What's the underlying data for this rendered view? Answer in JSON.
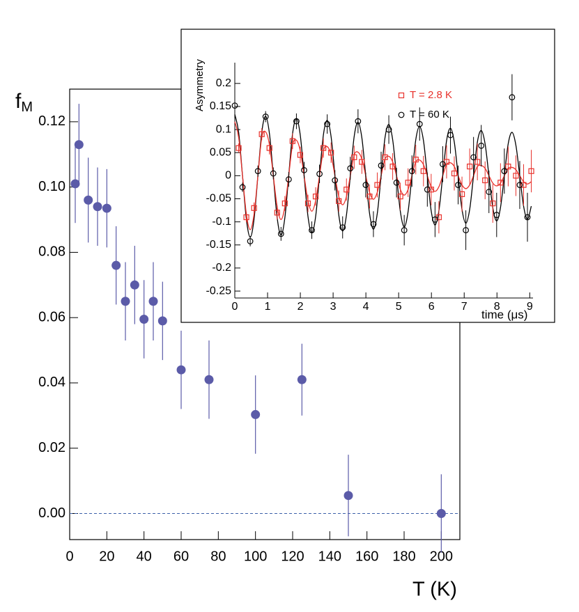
{
  "chart_data": [
    {
      "type": "scatter",
      "xlabel": "T (K)",
      "ylabel": "f",
      "ylabel_subscript": "M",
      "xlim": [
        0,
        210
      ],
      "ylim": [
        -0.008,
        0.13
      ],
      "xticks": [
        0,
        20,
        40,
        60,
        80,
        100,
        120,
        140,
        160,
        180,
        200
      ],
      "yticks": [
        {
          "value": 0,
          "label": "0.00"
        },
        {
          "value": 0.02,
          "label": "0.02"
        },
        {
          "value": 0.04,
          "label": "0.04"
        },
        {
          "value": 0.06,
          "label": "0.06"
        },
        {
          "value": 0.08,
          "label": "0.08"
        },
        {
          "value": 0.1,
          "label": "0.10"
        },
        {
          "value": 0.12,
          "label": "0.12"
        }
      ],
      "reference_line": 0,
      "reference_line_color": "#3a5fa8",
      "series": [
        {
          "color": "#5b5ba8",
          "marker": "circle",
          "x": [
            3,
            5,
            10,
            15,
            20,
            25,
            30,
            35,
            40,
            45,
            50,
            60,
            75,
            100,
            125,
            150,
            200
          ],
          "values": [
            0.101,
            0.113,
            0.096,
            0.094,
            0.0935,
            0.076,
            0.065,
            0.07,
            0.0595,
            0.065,
            0.059,
            0.044,
            0.041,
            0.0303,
            0.041,
            0.0055,
            0
          ],
          "errors": [
            0.012,
            0.0125,
            0.013,
            0.012,
            0.012,
            0.012,
            0.012,
            0.012,
            0.012,
            0.012,
            0.012,
            0.012,
            0.012,
            0.012,
            0.011,
            0.0125,
            0.012
          ]
        }
      ]
    },
    {
      "type": "scatter",
      "xlabel": "time (μs)",
      "ylabel": "Asymmetry",
      "xlim": [
        0,
        9.1
      ],
      "ylim": [
        -0.265,
        0.245
      ],
      "xticks": [
        0,
        1,
        2,
        3,
        4,
        5,
        6,
        7,
        8,
        9
      ],
      "yticks": [
        -0.25,
        -0.2,
        -0.15,
        -0.1,
        -0.05,
        0,
        0.05,
        0.1,
        0.15,
        0.2
      ],
      "series": [
        {
          "name": "T = 2.8 K",
          "color": "#e8302a",
          "marker": "square-open",
          "x": [
            0.1175,
            0.3525,
            0.5875,
            0.8225,
            1.0575,
            1.2925,
            1.5275,
            1.7625,
            1.9975,
            2.2325,
            2.4675,
            2.7025,
            2.9375,
            3.1725,
            3.4075,
            3.6425,
            3.8775,
            4.1125,
            4.3475,
            4.5825,
            4.8175,
            5.0525,
            5.2875,
            5.5225,
            5.7575,
            5.9925,
            6.2275,
            6.4625,
            6.6975,
            6.9325,
            7.1675,
            7.4025,
            7.6375,
            7.8725,
            8.1075,
            8.3425,
            8.5775,
            8.8125,
            9.0475
          ],
          "values": [
            0.06,
            -0.09,
            -0.07,
            0.09,
            0.06,
            -0.08,
            -0.06,
            0.075,
            0.045,
            -0.06,
            -0.045,
            0.06,
            0.05,
            -0.055,
            -0.03,
            0.04,
            0.03,
            -0.045,
            -0.02,
            0.04,
            0.02,
            -0.045,
            -0.015,
            0.035,
            0.01,
            -0.03,
            -0.09,
            0.03,
            0.005,
            -0.04,
            0.02,
            0.03,
            -0.01,
            -0.06,
            -0.015,
            0.02,
            0,
            -0.02,
            0.01
          ],
          "errors": [
            0.01,
            0.011,
            0.012,
            0.013,
            0.014,
            0.015,
            0.016,
            0.017,
            0.018,
            0.019,
            0.02,
            0.021,
            0.022,
            0.023,
            0.024,
            0.025,
            0.026,
            0.026,
            0.027,
            0.028,
            0.029,
            0.03,
            0.031,
            0.032,
            0.033,
            0.034,
            0.035,
            0.036,
            0.037,
            0.038,
            0.039,
            0.04,
            0.041,
            0.042,
            0.042,
            0.043,
            0.044,
            0.045,
            0.046
          ]
        },
        {
          "name": "T = 60 K",
          "color": "#000000",
          "marker": "circle-open",
          "x": [
            0,
            0.235,
            0.47,
            0.705,
            0.94,
            1.175,
            1.41,
            1.645,
            1.88,
            2.115,
            2.35,
            2.585,
            2.82,
            3.055,
            3.29,
            3.525,
            3.76,
            3.995,
            4.23,
            4.465,
            4.7,
            4.935,
            5.17,
            5.405,
            5.64,
            5.875,
            6.11,
            6.345,
            6.58,
            6.815,
            7.05,
            7.285,
            7.52,
            7.755,
            7.99,
            8.225,
            8.46,
            8.695,
            8.93
          ],
          "values": [
            0.152,
            -0.025,
            -0.142,
            0.01,
            0.128,
            0.005,
            -0.126,
            -0.008,
            0.118,
            0.012,
            -0.118,
            0.004,
            0.112,
            -0.01,
            -0.112,
            0.016,
            0.118,
            -0.02,
            -0.105,
            0.022,
            0.1,
            -0.015,
            -0.118,
            0.01,
            0.112,
            -0.03,
            -0.095,
            0.025,
            0.088,
            -0.02,
            -0.118,
            0.04,
            0.065,
            -0.035,
            -0.085,
            0.01,
            0.17,
            -0.02,
            -0.09
          ],
          "errors": [
            0.01,
            0.01,
            0.011,
            0.012,
            0.012,
            0.013,
            0.015,
            0.016,
            0.017,
            0.018,
            0.019,
            0.02,
            0.021,
            0.022,
            0.024,
            0.025,
            0.026,
            0.027,
            0.028,
            0.03,
            0.031,
            0.032,
            0.033,
            0.034,
            0.036,
            0.037,
            0.038,
            0.039,
            0.04,
            0.042,
            0.043,
            0.044,
            0.045,
            0.046,
            0.048,
            0.049,
            0.05,
            0.052,
            0.053
          ]
        }
      ],
      "fit_x": [
        0,
        0.1175,
        0.235,
        0.3525,
        0.47,
        0.5875,
        0.705,
        0.8225,
        0.94,
        1.0575,
        1.175,
        1.2925,
        1.41,
        1.5275,
        1.645,
        1.7625,
        1.88,
        1.9975,
        2.115,
        2.2325,
        2.35,
        2.4675,
        2.585,
        2.7025,
        2.82,
        2.9375,
        3.055,
        3.1725,
        3.29,
        3.4075,
        3.525,
        3.6425,
        3.76,
        3.8775,
        3.995,
        4.1125,
        4.23,
        4.3475,
        4.465,
        4.5825,
        4.7,
        4.8175,
        4.935,
        5.0525,
        5.17,
        5.2875,
        5.405,
        5.5225,
        5.64,
        5.7575,
        5.875,
        5.9925,
        6.11,
        6.2275,
        6.345,
        6.4625,
        6.58,
        6.6975,
        6.815,
        6.9325,
        7.05,
        7.1675,
        7.285,
        7.4025,
        7.52,
        7.6375,
        7.755,
        7.8725,
        7.99,
        8.1075,
        8.225,
        8.3425,
        8.46,
        8.5775,
        8.695,
        8.8125,
        8.93,
        9.0475
      ],
      "fits": [
        {
          "color": "#000000",
          "values": [
            0.133,
            0.094,
            0,
            -0.094,
            -0.133,
            -0.094,
            0,
            0.094,
            0.129,
            0.091,
            0,
            -0.091,
            -0.129,
            -0.091,
            0,
            0.091,
            0.124,
            0.088,
            0,
            -0.088,
            -0.124,
            -0.088,
            0,
            0.088,
            0.12,
            0.085,
            0,
            -0.085,
            -0.12,
            -0.085,
            0,
            0.085,
            0.116,
            0.082,
            0,
            -0.082,
            -0.116,
            -0.082,
            0,
            0.082,
            0.111,
            0.078,
            0,
            -0.078,
            -0.111,
            -0.078,
            0,
            0.078,
            0.107,
            0.076,
            0,
            -0.076,
            -0.107,
            -0.076,
            0,
            0.076,
            0.103,
            0.073,
            0,
            -0.073,
            -0.103,
            -0.073,
            0,
            0.073,
            0.098,
            0.069,
            0,
            -0.069,
            -0.098,
            -0.069,
            0,
            0.069,
            0.094,
            0.066,
            0,
            -0.066,
            -0.094,
            -0.066
          ]
        },
        {
          "color": "#e8302a",
          "values": [
            0.117,
            0.083,
            0,
            -0.083,
            -0.117,
            -0.083,
            0,
            0.083,
            0.095,
            0.067,
            0,
            -0.067,
            -0.095,
            -0.067,
            0,
            0.067,
            0.077,
            0.054,
            0,
            -0.054,
            -0.077,
            -0.054,
            0,
            0.054,
            0.063,
            0.045,
            0,
            -0.045,
            -0.063,
            -0.045,
            0,
            0.045,
            0.051,
            0.036,
            0,
            -0.036,
            -0.051,
            -0.036,
            0,
            0.036,
            0.042,
            0.03,
            0,
            -0.03,
            -0.042,
            -0.03,
            0,
            0.03,
            0.034,
            0.024,
            0,
            -0.024,
            -0.034,
            -0.024,
            0,
            0.024,
            0.028,
            0.02,
            0,
            -0.02,
            -0.028,
            -0.02,
            0,
            0.02,
            0.022,
            0.016,
            0,
            -0.016,
            -0.022,
            -0.016,
            0,
            0.016,
            0.018,
            0.013,
            0,
            -0.013,
            -0.018,
            -0.013
          ]
        }
      ]
    }
  ]
}
